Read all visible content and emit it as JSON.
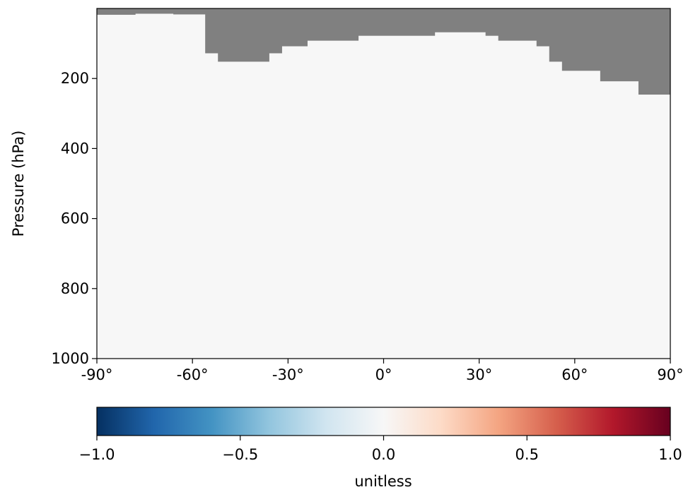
{
  "chart_data": [
    {
      "type": "heatmap",
      "title": "",
      "xlabel": "",
      "ylabel": "Pressure (hPa)",
      "xlim": [
        -90,
        90
      ],
      "ylim": [
        1000,
        0
      ],
      "x_ticks": [
        -90,
        -60,
        -30,
        0,
        30,
        60,
        90
      ],
      "x_tick_labels": [
        "-90°",
        "-60°",
        "-30°",
        "0°",
        "30°",
        "60°",
        "90°"
      ],
      "y_ticks": [
        200,
        400,
        600,
        800,
        1000
      ],
      "y_tick_labels": [
        "200",
        "400",
        "600",
        "800",
        "1000"
      ],
      "field_value": 0.0,
      "field_color": "#f7f7f7",
      "masked_color": "#808080",
      "grid": false,
      "masked_region_bottom_pressure": [
        {
          "lat_start": -90,
          "lat_end": -78,
          "pressure": 18
        },
        {
          "lat_start": -78,
          "lat_end": -66,
          "pressure": 15
        },
        {
          "lat_start": -66,
          "lat_end": -56,
          "pressure": 17
        },
        {
          "lat_start": -56,
          "lat_end": -52,
          "pressure": 128
        },
        {
          "lat_start": -52,
          "lat_end": -36,
          "pressure": 152
        },
        {
          "lat_start": -36,
          "lat_end": -32,
          "pressure": 128
        },
        {
          "lat_start": -32,
          "lat_end": -24,
          "pressure": 108
        },
        {
          "lat_start": -24,
          "lat_end": -8,
          "pressure": 92
        },
        {
          "lat_start": -8,
          "lat_end": 16,
          "pressure": 78
        },
        {
          "lat_start": 16,
          "lat_end": 32,
          "pressure": 68
        },
        {
          "lat_start": 32,
          "lat_end": 36,
          "pressure": 78
        },
        {
          "lat_start": 36,
          "lat_end": 48,
          "pressure": 92
        },
        {
          "lat_start": 48,
          "lat_end": 52,
          "pressure": 108
        },
        {
          "lat_start": 52,
          "lat_end": 56,
          "pressure": 152
        },
        {
          "lat_start": 56,
          "lat_end": 68,
          "pressure": 178
        },
        {
          "lat_start": 68,
          "lat_end": 80,
          "pressure": 208
        },
        {
          "lat_start": 80,
          "lat_end": 90,
          "pressure": 246
        }
      ]
    },
    {
      "type": "colorbar",
      "label": "unitless",
      "range": [
        -1.0,
        1.0
      ],
      "ticks": [
        -1.0,
        -0.5,
        0.0,
        0.5,
        1.0
      ],
      "tick_labels": [
        "−1.0",
        "−0.5",
        "0.0",
        "0.5",
        "1.0"
      ],
      "colormap": [
        "#053061",
        "#2166ac",
        "#4393c3",
        "#92c5de",
        "#d1e5f0",
        "#f7f7f7",
        "#fddbc7",
        "#f4a582",
        "#d6604d",
        "#b2182b",
        "#67001f"
      ]
    }
  ]
}
